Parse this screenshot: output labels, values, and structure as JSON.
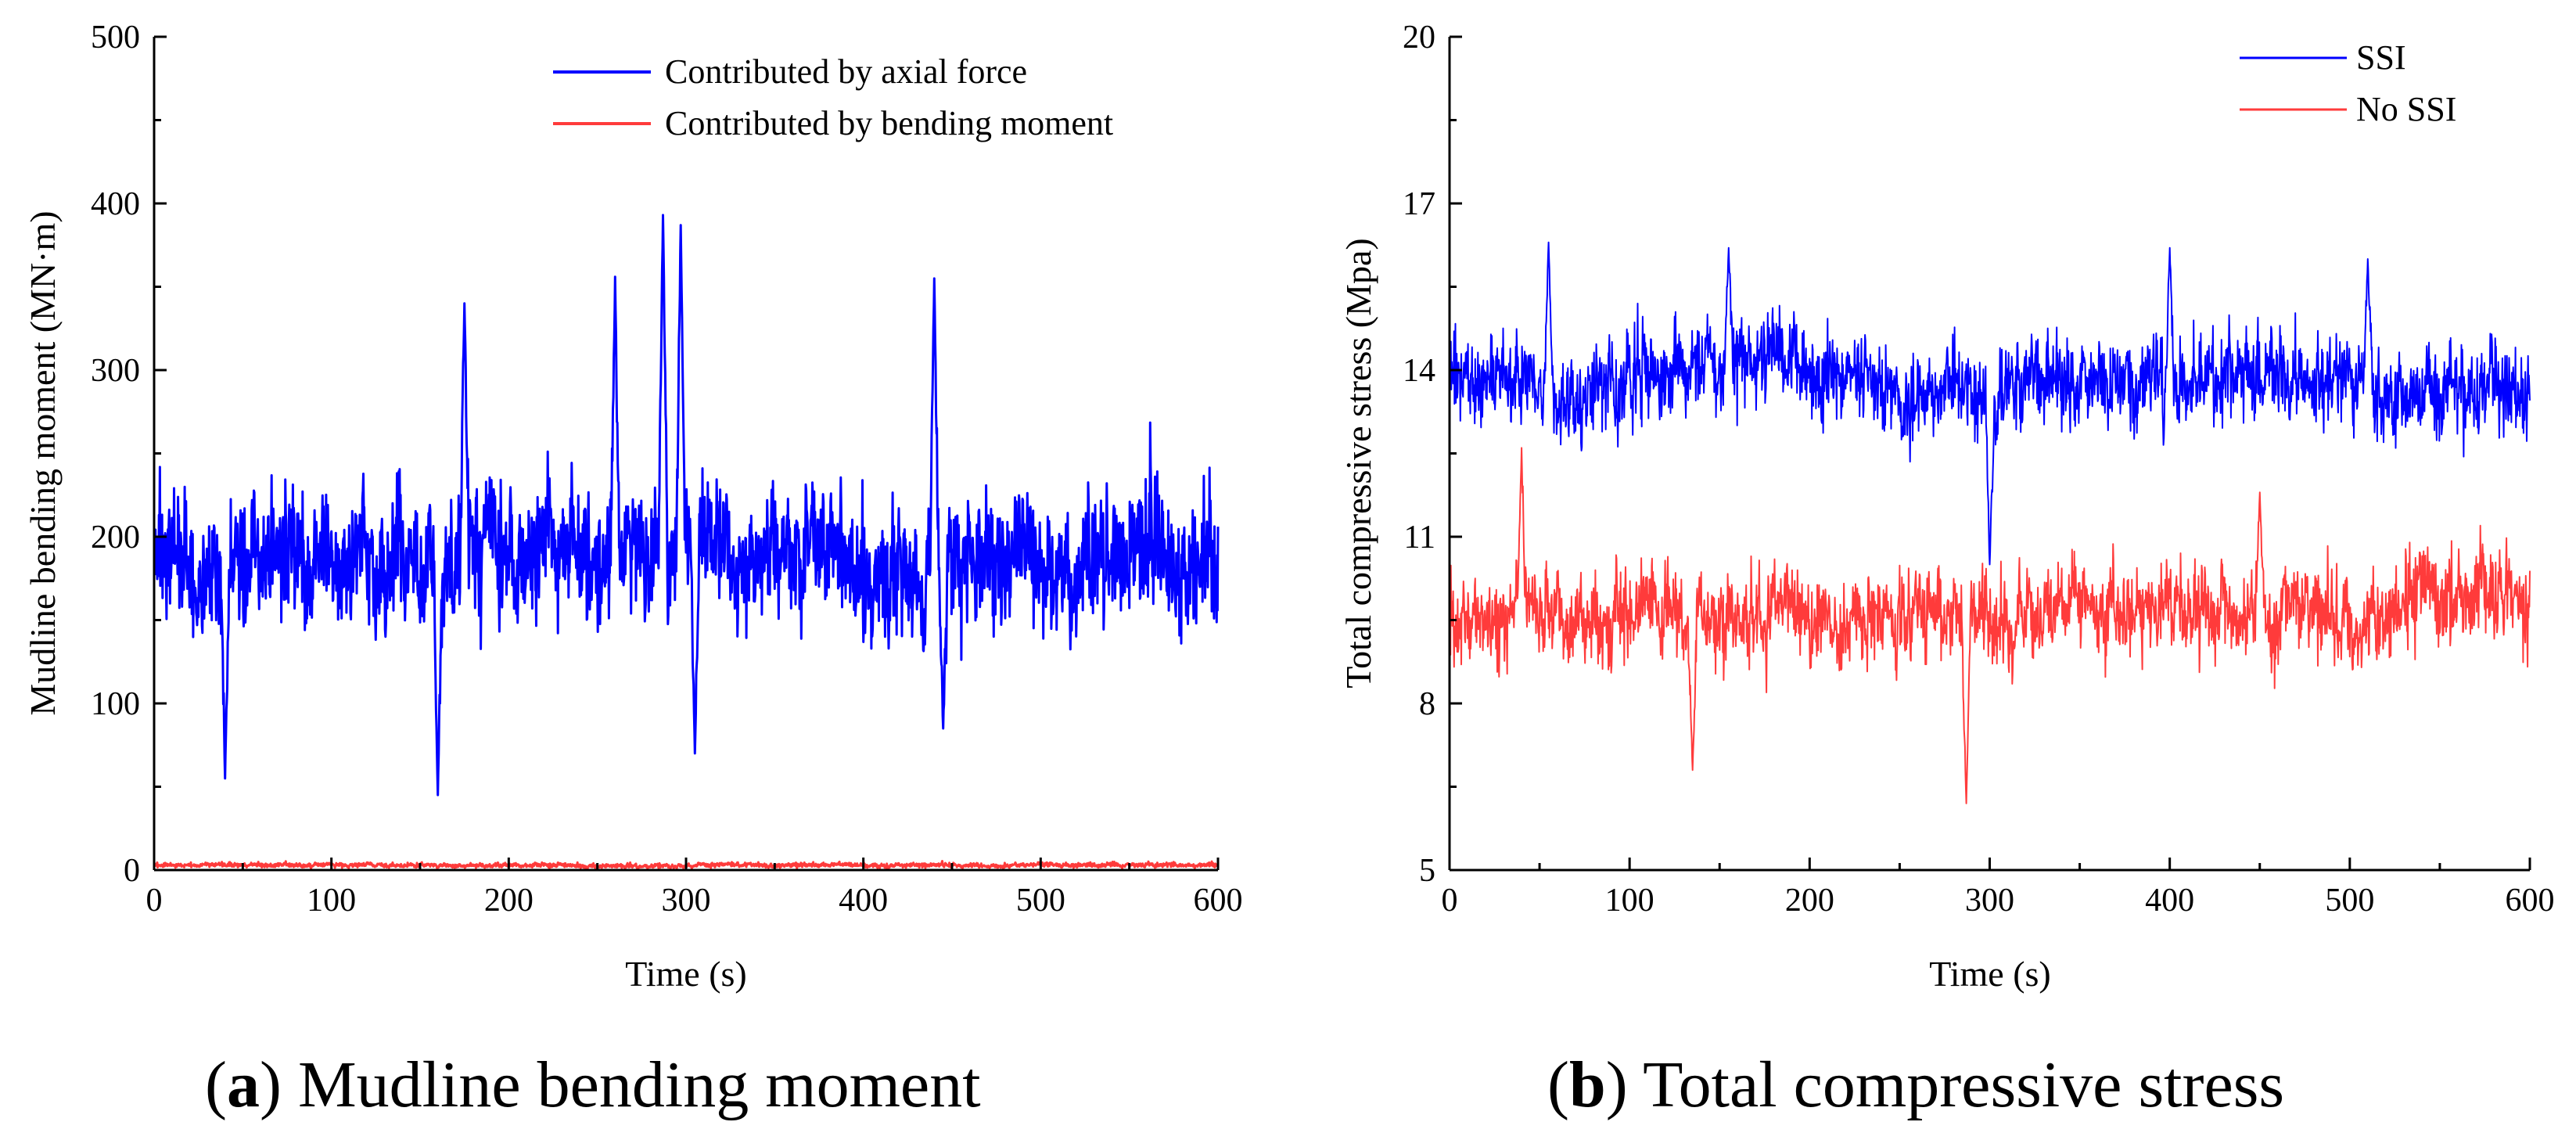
{
  "chart_data": [
    {
      "type": "line",
      "panel": "a",
      "caption_letter": "a",
      "caption_text": "Mudline bending moment",
      "xlabel": "Time (s)",
      "ylabel": "Mudline bending moment (MN·m)",
      "xlim": [
        0,
        600
      ],
      "ylim": [
        0,
        500
      ],
      "xticks": [
        0,
        100,
        200,
        300,
        400,
        500,
        600
      ],
      "yticks": [
        0,
        100,
        200,
        300,
        400,
        500
      ],
      "legend_position": "top-right",
      "series": [
        {
          "name": "Contributed by axial force",
          "color": "#0000ff",
          "mean": 190,
          "spread": 28,
          "min": 45,
          "max": 393,
          "peaks": [
            [
              40,
              55
            ],
            [
              160,
              45
            ],
            [
              175,
              340
            ],
            [
              260,
              356
            ],
            [
              287,
              393
            ],
            [
              297,
              387
            ],
            [
              305,
              70
            ],
            [
              440,
              355
            ],
            [
              445,
              85
            ]
          ]
        },
        {
          "name": "Contributed by bending moment",
          "color": "#ff3b3b",
          "mean": 3,
          "spread": 1,
          "min": 1,
          "max": 6
        }
      ]
    },
    {
      "type": "line",
      "panel": "b",
      "caption_letter": "b",
      "caption_text": "Total compressive stress",
      "xlabel": "Time (s)",
      "ylabel": "Total compressive stress (Mpa)",
      "xlim": [
        0,
        600
      ],
      "ylim": [
        5,
        20
      ],
      "xticks": [
        0,
        100,
        200,
        300,
        400,
        500,
        600
      ],
      "yticks": [
        5,
        8,
        11,
        14,
        17,
        20
      ],
      "legend_position": "top-right",
      "series": [
        {
          "name": "SSI",
          "color": "#0000ff",
          "mean": 13.8,
          "spread": 0.6,
          "min": 10.5,
          "max": 16.3,
          "peaks": [
            [
              55,
              16.3
            ],
            [
              155,
              16.2
            ],
            [
              300,
              10.5
            ],
            [
              400,
              16.2
            ],
            [
              510,
              16.0
            ]
          ]
        },
        {
          "name": "No SSI",
          "color": "#ff3b3b",
          "mean": 9.6,
          "spread": 0.6,
          "min": 6.2,
          "max": 12.6,
          "peaks": [
            [
              40,
              12.6
            ],
            [
              135,
              6.8
            ],
            [
              287,
              6.2
            ],
            [
              450,
              11.8
            ]
          ]
        }
      ]
    }
  ]
}
